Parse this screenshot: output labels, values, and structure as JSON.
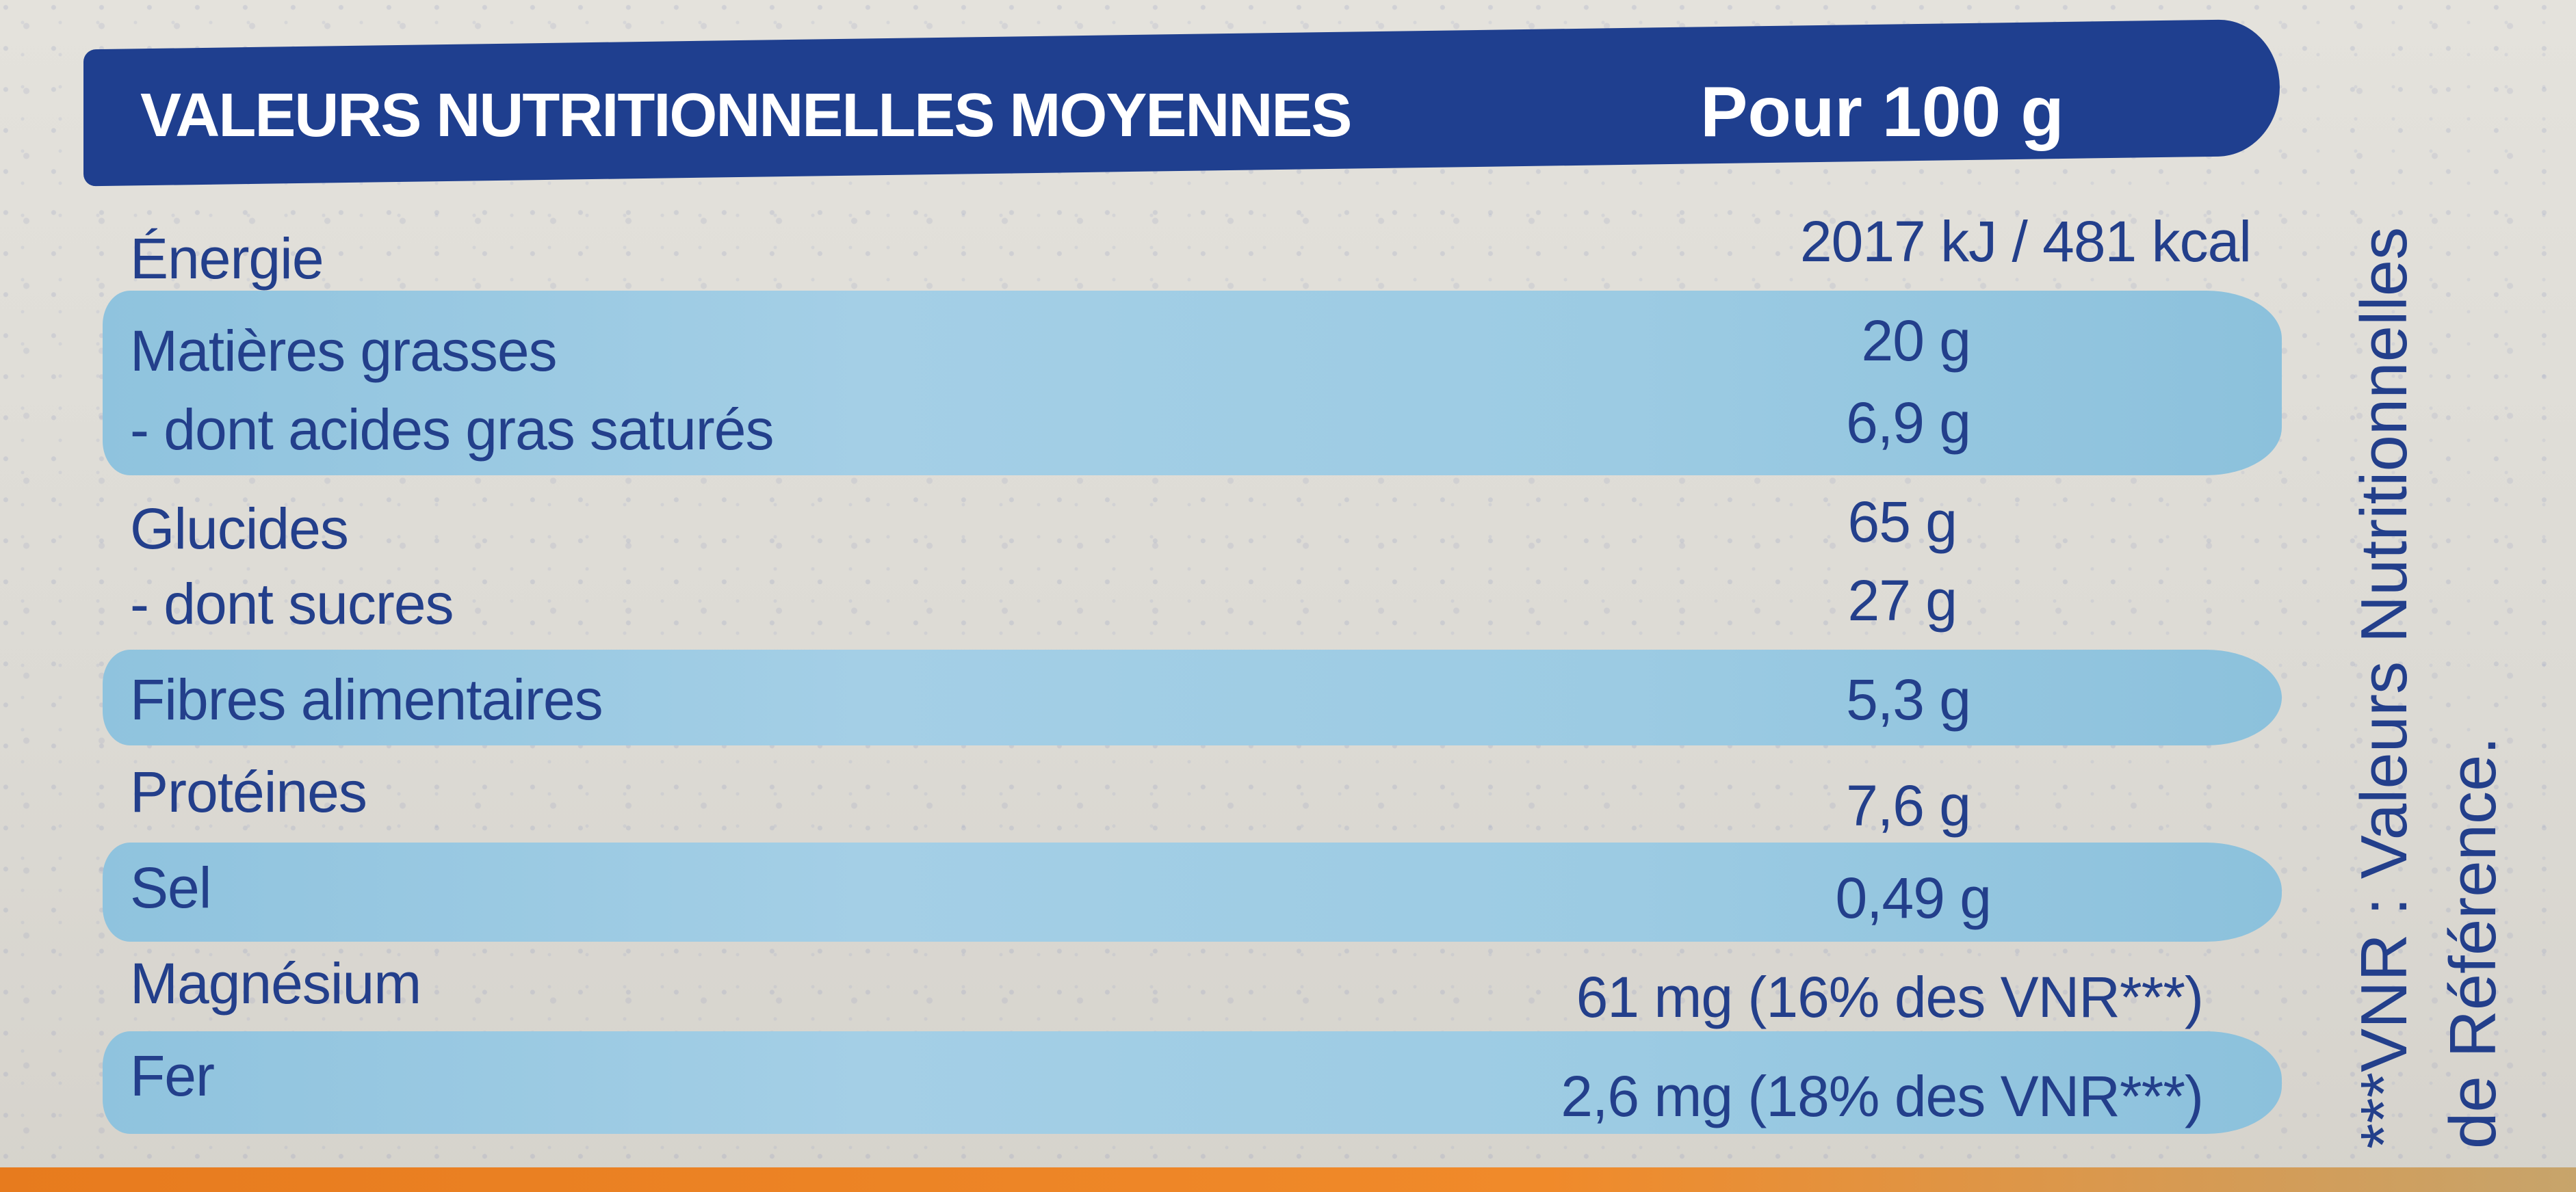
{
  "header": {
    "title": "VALEURS NUTRITIONNELLES MOYENNES",
    "column": "Pour 100 g"
  },
  "rows": [
    {
      "label": "Énergie",
      "value": "2017 kJ / 481 kcal"
    },
    {
      "label": "Matières grasses",
      "value": "20 g"
    },
    {
      "label": "- dont acides gras saturés",
      "value": "6,9 g"
    },
    {
      "label": "Glucides",
      "value": "65 g"
    },
    {
      "label": "- dont sucres",
      "value": "27 g"
    },
    {
      "label": "Fibres alimentaires",
      "value": "5,3 g"
    },
    {
      "label": "Protéines",
      "value": "7,6 g"
    },
    {
      "label": "Sel",
      "value": "0,49 g"
    },
    {
      "label": "Magnésium",
      "value": "61 mg (16% des VNR***)"
    },
    {
      "label": "Fer",
      "value": "2,6 mg (18% des VNR***)"
    }
  ],
  "footnote": {
    "line1": "***VNR : Valeurs Nutritionnelles",
    "line2": "de Référence."
  },
  "colors": {
    "header_bg": "#1f3f8f",
    "text": "#233f8b",
    "band": "#9ccbe3"
  }
}
